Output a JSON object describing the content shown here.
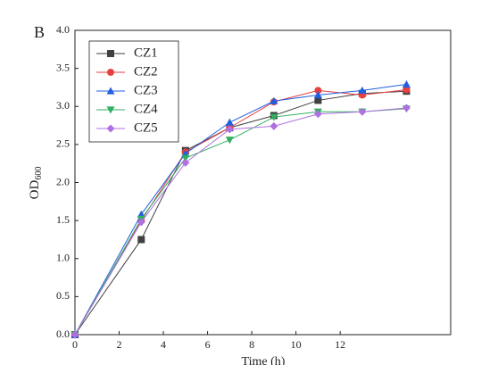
{
  "chart_data": {
    "type": "line",
    "panel_label": "B",
    "x_label": "Time (h)",
    "y_label": "OD",
    "y_label_sub": "600",
    "x": [
      0,
      3,
      5,
      7,
      9,
      11,
      13,
      15
    ],
    "series": [
      {
        "name": "CZ1",
        "color": "#404040",
        "marker": "square",
        "values": [
          0,
          1.25,
          2.42,
          2.72,
          2.88,
          3.08,
          3.17,
          3.2
        ]
      },
      {
        "name": "CZ2",
        "color": "#e84040",
        "marker": "circle",
        "values": [
          0,
          1.5,
          2.4,
          2.72,
          3.06,
          3.21,
          3.15,
          3.22
        ]
      },
      {
        "name": "CZ3",
        "color": "#2060e0",
        "marker": "triangle-up",
        "values": [
          0,
          1.58,
          2.38,
          2.79,
          3.07,
          3.15,
          3.21,
          3.29
        ]
      },
      {
        "name": "CZ4",
        "color": "#30b060",
        "marker": "triangle-down",
        "values": [
          0,
          1.52,
          2.32,
          2.56,
          2.86,
          2.93,
          2.93,
          2.97
        ]
      },
      {
        "name": "CZ5",
        "color": "#b070e0",
        "marker": "diamond",
        "values": [
          0,
          1.48,
          2.26,
          2.7,
          2.74,
          2.9,
          2.93,
          2.98
        ]
      }
    ],
    "xlim": [
      0,
      17
    ],
    "xticks": [
      0,
      2,
      4,
      6,
      8,
      10,
      12
    ],
    "ylim": [
      0,
      4
    ],
    "yticks": [
      {
        "value": 0,
        "label": "0.0"
      },
      {
        "value": 0.5,
        "label": "0.5"
      },
      {
        "value": 1,
        "label": "1.0"
      },
      {
        "value": 1.5,
        "label": "1.5"
      },
      {
        "value": 2,
        "label": "2.0"
      },
      {
        "value": 2.5,
        "label": "2.5"
      },
      {
        "value": 3,
        "label": "3.0"
      },
      {
        "value": 3.5,
        "label": "3.5"
      },
      {
        "value": 4,
        "label": "4.0"
      }
    ],
    "legend": "upper left",
    "grid": false
  }
}
